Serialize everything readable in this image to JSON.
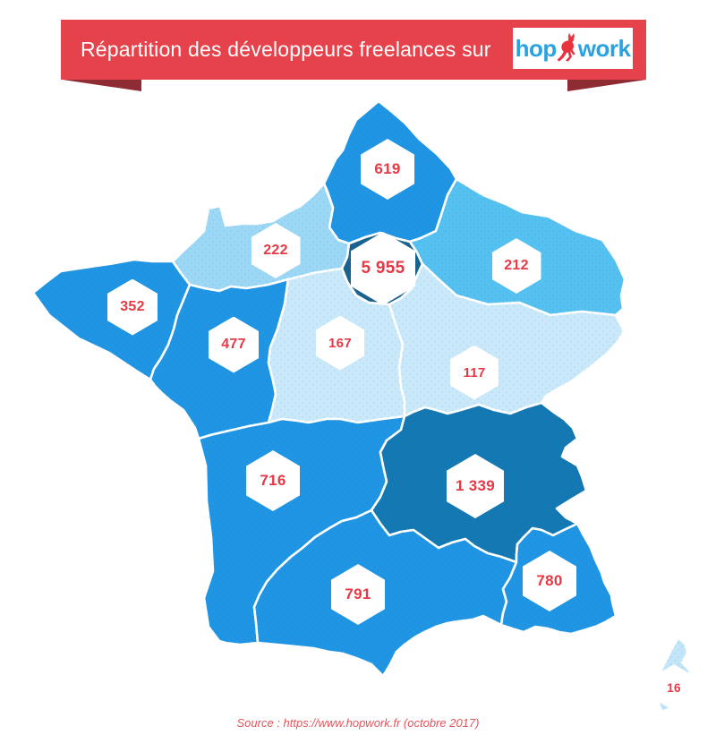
{
  "banner": {
    "title": "Répartition des développeurs freelances sur",
    "logo": {
      "part1": "hop",
      "part2": "work"
    }
  },
  "map": {
    "regions": [
      {
        "id": "hauts-de-france",
        "value": "619",
        "color": "#2095E4"
      },
      {
        "id": "normandie",
        "value": "222",
        "color": "#9CD8F5"
      },
      {
        "id": "ile-de-france",
        "value": "5 955",
        "color": "#1A6290"
      },
      {
        "id": "grand-est",
        "value": "212",
        "color": "#55C1F0"
      },
      {
        "id": "bretagne",
        "value": "352",
        "color": "#2095E4"
      },
      {
        "id": "pays-de-la-loire",
        "value": "477",
        "color": "#2095E4"
      },
      {
        "id": "centre-val-de-loire",
        "value": "167",
        "color": "#C9E9FA"
      },
      {
        "id": "bourgogne-franche-comte",
        "value": "117",
        "color": "#C9E9FA"
      },
      {
        "id": "nouvelle-aquitaine",
        "value": "716",
        "color": "#2095E4"
      },
      {
        "id": "auvergne-rhone-alpes",
        "value": "1 339",
        "color": "#1478B3"
      },
      {
        "id": "occitanie",
        "value": "791",
        "color": "#2095E4"
      },
      {
        "id": "provence-alpes-cote-d-azur",
        "value": "780",
        "color": "#2095E4"
      },
      {
        "id": "corse",
        "value": "16",
        "color": "#C2E6F8"
      }
    ]
  },
  "source": "Source : https://www.hopwork.fr (octobre 2017)",
  "colors": {
    "banner_red": "#E5424B",
    "banner_fold": "#8F2B33",
    "logo_blue": "#29A3DF",
    "logo_mark_red": "#E8333D",
    "badge_red": "#E73844",
    "source_red": "#E4555C"
  }
}
